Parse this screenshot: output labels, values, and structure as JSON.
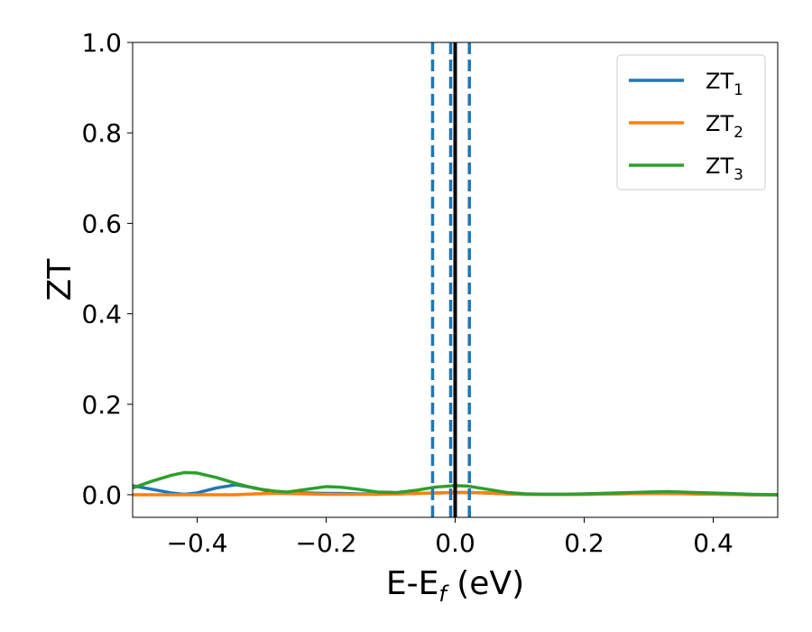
{
  "chart_data": {
    "type": "line",
    "xlabel_base": "E-E",
    "xlabel_sub": "f",
    "xlabel_unit": " (eV)",
    "ylabel": "ZT",
    "xlim": [
      -0.5,
      0.5
    ],
    "ylim": [
      -0.05,
      1.0
    ],
    "x_ticks": [
      -0.4,
      -0.2,
      0.0,
      0.2,
      0.4
    ],
    "x_tick_labels": [
      "−0.4",
      "−0.2",
      "0.0",
      "0.2",
      "0.4"
    ],
    "y_ticks": [
      0.0,
      0.2,
      0.4,
      0.6,
      0.8,
      1.0
    ],
    "y_tick_labels": [
      "0.0",
      "0.2",
      "0.4",
      "0.6",
      "0.8",
      "1.0"
    ],
    "grid": false,
    "legend_position": "top-right",
    "x": [
      -0.5,
      -0.47,
      -0.44,
      -0.42,
      -0.4,
      -0.37,
      -0.34,
      -0.31,
      -0.28,
      -0.26,
      -0.23,
      -0.2,
      -0.18,
      -0.15,
      -0.12,
      -0.09,
      -0.06,
      -0.03,
      0.0,
      0.02,
      0.05,
      0.08,
      0.11,
      0.14,
      0.17,
      0.2,
      0.25,
      0.3,
      0.33,
      0.37,
      0.42,
      0.46,
      0.5
    ],
    "series": [
      {
        "base": "ZT",
        "sub": "1",
        "color": "#1f77b4",
        "values": [
          0.02,
          0.012,
          0.004,
          0.001,
          0.004,
          0.015,
          0.022,
          0.015,
          0.004,
          0.003,
          0.004,
          0.003,
          0.003,
          0.002,
          0.002,
          0.002,
          0.003,
          0.004,
          0.005,
          0.005,
          0.004,
          0.002,
          0.001,
          0.001,
          0.001,
          0.001,
          0.002,
          0.003,
          0.003,
          0.002,
          0.001,
          0.0,
          0.0
        ]
      },
      {
        "base": "ZT",
        "sub": "2",
        "color": "#ff7f0e",
        "values": [
          0.0,
          0.0,
          0.0,
          0.0,
          0.0,
          0.0,
          0.0,
          0.002,
          0.003,
          0.003,
          0.002,
          0.001,
          0.001,
          0.001,
          0.001,
          0.002,
          0.003,
          0.004,
          0.005,
          0.005,
          0.004,
          0.002,
          0.001,
          0.001,
          0.001,
          0.001,
          0.002,
          0.003,
          0.003,
          0.002,
          0.001,
          0.0,
          0.0
        ]
      },
      {
        "base": "ZT",
        "sub": "3",
        "color": "#2ca02c",
        "values": [
          0.015,
          0.03,
          0.043,
          0.049,
          0.048,
          0.038,
          0.025,
          0.014,
          0.008,
          0.006,
          0.012,
          0.018,
          0.017,
          0.012,
          0.006,
          0.005,
          0.01,
          0.017,
          0.02,
          0.019,
          0.012,
          0.005,
          0.002,
          0.001,
          0.001,
          0.002,
          0.004,
          0.006,
          0.007,
          0.005,
          0.003,
          0.001,
          0.0
        ]
      }
    ],
    "vlines": [
      {
        "x": -0.035,
        "style": "dashed",
        "color": "#1f77b4"
      },
      {
        "x": -0.007,
        "style": "dashed",
        "color": "#1f77b4"
      },
      {
        "x": 0.0,
        "style": "solid",
        "color": "#000000"
      },
      {
        "x": 0.022,
        "style": "dashed",
        "color": "#1f77b4"
      }
    ]
  }
}
